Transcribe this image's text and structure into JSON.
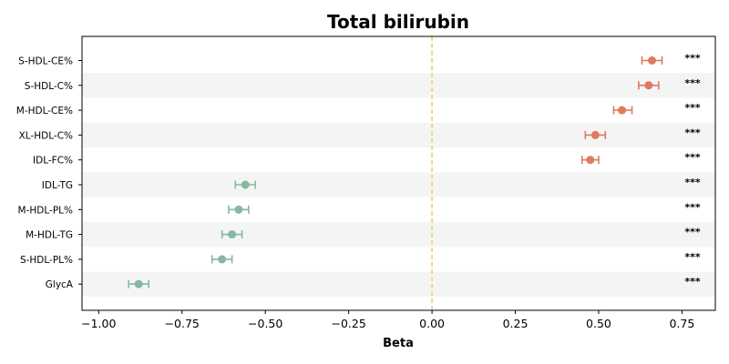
{
  "chart_data": {
    "type": "forest",
    "title": "Total bilirubin",
    "xlabel": "Beta",
    "xlim": [
      -1.05,
      0.85
    ],
    "xticks": [
      -1.0,
      -0.75,
      -0.5,
      -0.25,
      0.0,
      0.25,
      0.5,
      0.75
    ],
    "xtick_labels": [
      "−1.00",
      "−0.75",
      "−0.50",
      "−0.25",
      "0.00",
      "0.25",
      "0.50",
      "0.75"
    ],
    "reference_line": 0.0,
    "row_banding": true,
    "grid": false,
    "points": [
      {
        "label": "S-HDL-CE%",
        "beta": 0.66,
        "ci_low": 0.63,
        "ci_high": 0.69,
        "sig": "***"
      },
      {
        "label": "S-HDL-C%",
        "beta": 0.65,
        "ci_low": 0.62,
        "ci_high": 0.68,
        "sig": "***"
      },
      {
        "label": "M-HDL-CE%",
        "beta": 0.57,
        "ci_low": 0.545,
        "ci_high": 0.6,
        "sig": "***"
      },
      {
        "label": "XL-HDL-C%",
        "beta": 0.49,
        "ci_low": 0.46,
        "ci_high": 0.52,
        "sig": "***"
      },
      {
        "label": "IDL-FC%",
        "beta": 0.475,
        "ci_low": 0.45,
        "ci_high": 0.5,
        "sig": "***"
      },
      {
        "label": "IDL-TG",
        "beta": -0.56,
        "ci_low": -0.59,
        "ci_high": -0.53,
        "sig": "***"
      },
      {
        "label": "M-HDL-PL%",
        "beta": -0.58,
        "ci_low": -0.61,
        "ci_high": -0.55,
        "sig": "***"
      },
      {
        "label": "M-HDL-TG",
        "beta": -0.6,
        "ci_low": -0.63,
        "ci_high": -0.57,
        "sig": "***"
      },
      {
        "label": "S-HDL-PL%",
        "beta": -0.63,
        "ci_low": -0.66,
        "ci_high": -0.6,
        "sig": "***"
      },
      {
        "label": "GlycA",
        "beta": -0.88,
        "ci_low": -0.91,
        "ci_high": -0.85,
        "sig": "***"
      }
    ],
    "colors": {
      "positive": "#de7a60",
      "negative": "#86b8a0",
      "reference_line": "#f5c97a",
      "band": "#f4f4f4"
    }
  }
}
